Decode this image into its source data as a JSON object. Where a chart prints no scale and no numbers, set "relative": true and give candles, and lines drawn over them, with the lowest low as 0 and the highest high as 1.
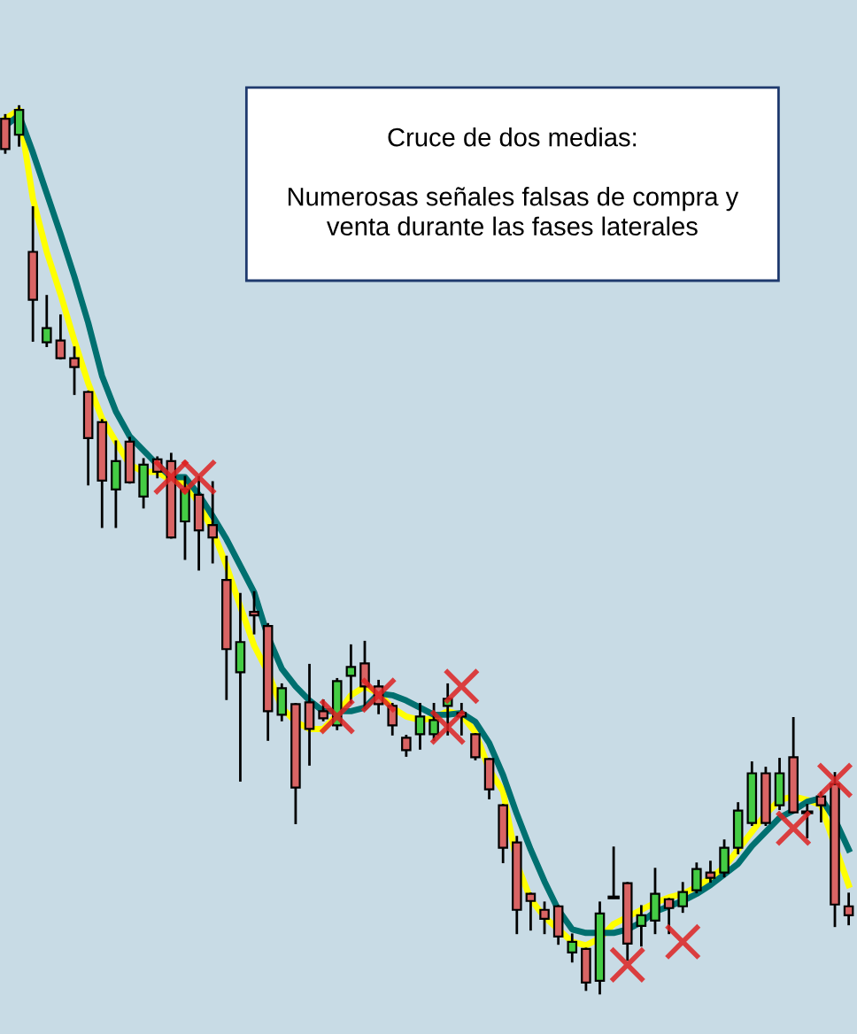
{
  "chart_data": {
    "type": "candlestick",
    "relative": true,
    "categories": [
      null,
      null,
      null,
      null,
      null,
      null,
      null,
      null,
      null,
      null,
      null,
      null,
      null,
      null,
      null,
      null,
      null,
      null,
      null,
      null,
      null,
      null,
      null,
      null,
      null,
      null,
      null,
      null,
      null,
      null,
      null,
      null,
      null,
      null,
      null,
      null,
      null,
      null,
      null,
      null,
      null,
      null,
      null,
      null,
      null,
      null,
      null,
      null,
      null,
      null,
      null,
      null,
      null,
      null,
      null,
      null,
      null,
      null,
      null,
      null,
      null,
      null
    ],
    "annotations": [
      "Cruce de dos medias:\n\nNumerosas señales falsas de compra y\nventa durante las fases laterales"
    ],
    "ohlc": [
      [
        0.986,
        0.99,
        0.948,
        0.952
      ],
      [
        0.968,
        1.0,
        0.956,
        0.996
      ],
      [
        0.836,
        0.886,
        0.736,
        0.782
      ],
      [
        0.734,
        0.786,
        0.73,
        0.75
      ],
      [
        0.736,
        0.764,
        0.716,
        0.716
      ],
      [
        0.716,
        0.728,
        0.676,
        0.706
      ],
      [
        0.678,
        0.678,
        0.574,
        0.626
      ],
      [
        0.644,
        0.646,
        0.526,
        0.578
      ],
      [
        0.568,
        0.622,
        0.526,
        0.6
      ],
      [
        0.622,
        0.626,
        0.576,
        0.576
      ],
      [
        0.56,
        0.602,
        0.548,
        0.596
      ],
      [
        0.602,
        0.604,
        0.582,
        0.588
      ],
      [
        0.6,
        0.608,
        0.514,
        0.514
      ],
      [
        0.532,
        0.582,
        0.49,
        0.568
      ],
      [
        0.562,
        0.582,
        0.478,
        0.522
      ],
      [
        0.528,
        0.576,
        0.486,
        0.514
      ],
      [
        0.466,
        0.492,
        0.332,
        0.388
      ],
      [
        0.362,
        0.45,
        0.24,
        0.396
      ],
      [
        0.43,
        0.452,
        0.406,
        0.426
      ],
      [
        0.414,
        0.416,
        0.286,
        0.318
      ],
      [
        0.314,
        0.348,
        0.308,
        0.344
      ],
      [
        0.326,
        0.326,
        0.192,
        0.232
      ],
      [
        0.328,
        0.37,
        0.258,
        0.298
      ],
      [
        0.318,
        0.33,
        0.308,
        0.31
      ],
      [
        0.302,
        0.354,
        0.298,
        0.352
      ],
      [
        0.358,
        0.392,
        0.328,
        0.368
      ],
      [
        0.372,
        0.396,
        0.322,
        0.346
      ],
      [
        0.346,
        0.352,
        0.316,
        0.326
      ],
      [
        0.324,
        0.326,
        0.292,
        0.302
      ],
      [
        0.288,
        0.29,
        0.268,
        0.274
      ],
      [
        0.292,
        0.326,
        0.276,
        0.312
      ],
      [
        0.292,
        0.326,
        0.286,
        0.308
      ],
      [
        0.324,
        0.348,
        0.292,
        0.332
      ],
      [
        0.316,
        0.326,
        0.292,
        0.312
      ],
      [
        0.292,
        0.292,
        0.264,
        0.266
      ],
      [
        0.264,
        0.264,
        0.22,
        0.23
      ],
      [
        0.212,
        0.212,
        0.148,
        0.164
      ],
      [
        0.17,
        0.176,
        0.068,
        0.094
      ],
      [
        0.112,
        0.112,
        0.072,
        0.104
      ],
      [
        0.094,
        0.102,
        0.068,
        0.084
      ],
      [
        0.098,
        0.098,
        0.056,
        0.064
      ],
      [
        0.046,
        0.066,
        0.036,
        0.058
      ],
      [
        0.05,
        0.05,
        0.004,
        0.012
      ],
      [
        0.014,
        0.102,
        0.0,
        0.09
      ],
      [
        0.108,
        0.164,
        0.108,
        0.108
      ],
      [
        0.124,
        0.124,
        0.038,
        0.056
      ],
      [
        0.076,
        0.098,
        0.054,
        0.088
      ],
      [
        0.082,
        0.14,
        0.068,
        0.112
      ],
      [
        0.106,
        0.106,
        0.068,
        0.096
      ],
      [
        0.098,
        0.124,
        0.092,
        0.114
      ],
      [
        0.116,
        0.146,
        0.114,
        0.14
      ],
      [
        0.136,
        0.148,
        0.126,
        0.13
      ],
      [
        0.136,
        0.172,
        0.132,
        0.164
      ],
      [
        0.164,
        0.214,
        0.158,
        0.206
      ],
      [
        0.192,
        0.26,
        0.19,
        0.248
      ],
      [
        0.248,
        0.254,
        0.19,
        0.192
      ],
      [
        0.212,
        0.264,
        0.208,
        0.248
      ],
      [
        0.266,
        0.31,
        0.204,
        0.204
      ],
      [
        0.204,
        0.212,
        0.176,
        0.204
      ],
      [
        0.222,
        0.226,
        0.194,
        0.212
      ],
      [
        0.236,
        0.248,
        0.076,
        0.1
      ],
      [
        0.098,
        0.112,
        0.078,
        0.088
      ]
    ],
    "colors": [
      "#d96464",
      "#44cc44",
      "#d96464",
      "#44cc44",
      "#d96464",
      "#d96464",
      "#d96464",
      "#d96464",
      "#44cc44",
      "#d96464",
      "#44cc44",
      "#d96464",
      "#d96464",
      "#44cc44",
      "#d96464",
      "#d96464",
      "#d96464",
      "#44cc44",
      "#d96464",
      "#d96464",
      "#44cc44",
      "#d96464",
      "#d96464",
      "#d96464",
      "#44cc44",
      "#44cc44",
      "#d96464",
      "#d96464",
      "#d96464",
      "#d96464",
      "#44cc44",
      "#44cc44",
      "#44cc44",
      "#d96464",
      "#d96464",
      "#d96464",
      "#d96464",
      "#d96464",
      "#d96464",
      "#d96464",
      "#d96464",
      "#44cc44",
      "#d96464",
      "#44cc44",
      "#000000",
      "#d96464",
      "#44cc44",
      "#44cc44",
      "#d96464",
      "#44cc44",
      "#44cc44",
      "#d96464",
      "#44cc44",
      "#44cc44",
      "#44cc44",
      "#d96464",
      "#44cc44",
      "#d96464",
      "#000000",
      "#d96464",
      "#d96464",
      "#d96464"
    ],
    "series": [
      {
        "type": "line",
        "color": "#ffff00",
        "values": [
          0.986,
          0.996,
          0.896,
          0.836,
          0.788,
          0.736,
          0.688,
          0.648,
          0.622,
          0.596,
          0.588,
          0.588,
          0.578,
          0.576,
          0.552,
          0.522,
          0.482,
          0.436,
          0.392,
          0.362,
          0.322,
          0.306,
          0.298,
          0.298,
          0.314,
          0.336,
          0.346,
          0.338,
          0.322,
          0.312,
          0.308,
          0.31,
          0.318,
          0.314,
          0.294,
          0.252,
          0.228,
          0.146,
          0.106,
          0.086,
          0.072,
          0.058,
          0.054,
          0.062,
          0.078,
          0.086,
          0.094,
          0.102,
          0.108,
          0.112,
          0.12,
          0.13,
          0.142,
          0.162,
          0.182,
          0.202,
          0.218,
          0.222,
          0.218,
          0.212,
          0.166,
          0.122
        ]
      },
      {
        "type": "line",
        "color": "#007070",
        "values": [
          0.978,
          0.99,
          0.948,
          0.902,
          0.856,
          0.808,
          0.756,
          0.696,
          0.656,
          0.628,
          0.612,
          0.596,
          0.582,
          0.582,
          0.562,
          0.538,
          0.512,
          0.482,
          0.452,
          0.402,
          0.366,
          0.346,
          0.33,
          0.318,
          0.318,
          0.318,
          0.322,
          0.338,
          0.336,
          0.33,
          0.322,
          0.314,
          0.314,
          0.316,
          0.306,
          0.282,
          0.246,
          0.202,
          0.162,
          0.126,
          0.094,
          0.072,
          0.068,
          0.068,
          0.068,
          0.072,
          0.08,
          0.092,
          0.098,
          0.104,
          0.112,
          0.122,
          0.134,
          0.146,
          0.166,
          0.182,
          0.198,
          0.206,
          0.216,
          0.22,
          0.196,
          0.162
        ]
      },
      {
        "type": "scatter",
        "color": "#dd2222",
        "marker": "cross",
        "values": [
          null,
          null,
          null,
          null,
          null,
          null,
          null,
          null,
          null,
          null,
          null,
          null,
          0.582,
          null,
          0.582,
          null,
          null,
          null,
          null,
          null,
          null,
          null,
          null,
          null,
          0.312,
          null,
          null,
          0.336,
          null,
          null,
          null,
          null,
          0.3,
          0.346,
          null,
          null,
          null,
          null,
          null,
          null,
          null,
          null,
          null,
          null,
          null,
          0.032,
          null,
          null,
          null,
          0.058,
          null,
          null,
          null,
          null,
          null,
          null,
          null,
          0.186,
          null,
          null,
          0.24,
          null
        ]
      }
    ]
  }
}
